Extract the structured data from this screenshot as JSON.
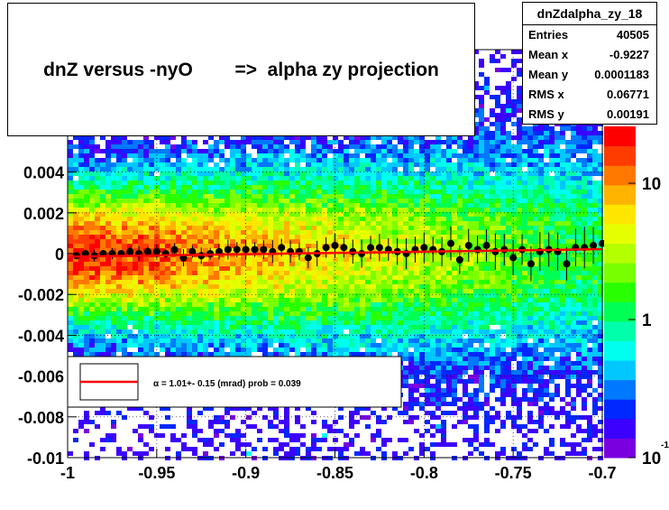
{
  "title": "dnZ versus -nyO        =>  alpha zy projection",
  "stats": {
    "name": "dnZdalpha_zy_18",
    "rows": [
      {
        "key": "Entries",
        "value": "40505"
      },
      {
        "key": "Mean x",
        "value": "-0.9227"
      },
      {
        "key": "Mean y",
        "value": "0.0001183"
      },
      {
        "key": "RMS x",
        "value": "0.06771"
      },
      {
        "key": "RMS y",
        "value": "0.00191"
      }
    ]
  },
  "chart_data": {
    "type": "heatmap",
    "xlim": [
      -1.0,
      -0.7
    ],
    "ylim": [
      -0.01,
      0.01
    ],
    "x_ticks": [
      "-1",
      "-0.95",
      "-0.9",
      "-0.85",
      "-0.8",
      "-0.75",
      "-0.7"
    ],
    "y_ticks": [
      "-0.01",
      "-0.008",
      "-0.006",
      "-0.004",
      "-0.002",
      "0",
      "0.002",
      "0.004"
    ],
    "grid": true,
    "colorbar": {
      "scale": "log",
      "labels": [
        "10",
        "1",
        "10"
      ],
      "exponent": "-1"
    },
    "palette": [
      "#7a00e0",
      "#3c00ff",
      "#0028ff",
      "#0078ff",
      "#00c8ff",
      "#00ffee",
      "#00ffaa",
      "#00ff55",
      "#28ff00",
      "#78ff00",
      "#b4ff00",
      "#e6ff00",
      "#ffe600",
      "#ffb400",
      "#ff7800",
      "#ff3c00",
      "#ff0000"
    ],
    "profile_points": [
      [
        -0.995,
        -0.0001
      ],
      [
        -0.99,
        0.0
      ],
      [
        -0.985,
        -0.0001
      ],
      [
        -0.98,
        0.0
      ],
      [
        -0.975,
        0.0
      ],
      [
        -0.97,
        0.0
      ],
      [
        -0.965,
        0.0001
      ],
      [
        -0.96,
        0.0
      ],
      [
        -0.955,
        0.0001
      ],
      [
        -0.95,
        0.0001
      ],
      [
        -0.945,
        0.0
      ],
      [
        -0.94,
        0.0002
      ],
      [
        -0.935,
        -0.0002
      ],
      [
        -0.93,
        0.0001
      ],
      [
        -0.925,
        -0.0001
      ],
      [
        -0.92,
        0.0
      ],
      [
        -0.915,
        0.0001
      ],
      [
        -0.91,
        0.0002
      ],
      [
        -0.905,
        0.0002
      ],
      [
        -0.9,
        0.0002
      ],
      [
        -0.895,
        0.0002
      ],
      [
        -0.89,
        0.0002
      ],
      [
        -0.885,
        0.0001
      ],
      [
        -0.88,
        0.0003
      ],
      [
        -0.875,
        0.0001
      ],
      [
        -0.87,
        0.0001
      ],
      [
        -0.865,
        -0.0002
      ],
      [
        -0.86,
        0.0
      ],
      [
        -0.855,
        0.0003
      ],
      [
        -0.85,
        0.0004
      ],
      [
        -0.845,
        0.0003
      ],
      [
        -0.84,
        0.0001
      ],
      [
        -0.835,
        0.0
      ],
      [
        -0.83,
        0.0003
      ],
      [
        -0.825,
        0.0003
      ],
      [
        -0.82,
        0.0002
      ],
      [
        -0.815,
        0.0001
      ],
      [
        -0.81,
        0.0
      ],
      [
        -0.805,
        0.0002
      ],
      [
        -0.8,
        0.0003
      ],
      [
        -0.795,
        0.0002
      ],
      [
        -0.79,
        0.0001
      ],
      [
        -0.785,
        0.0005
      ],
      [
        -0.78,
        -0.0003
      ],
      [
        -0.775,
        0.0004
      ],
      [
        -0.77,
        0.0002
      ],
      [
        -0.765,
        0.0004
      ],
      [
        -0.76,
        0.0001
      ],
      [
        -0.755,
        0.0002
      ],
      [
        -0.75,
        -0.0002
      ],
      [
        -0.745,
        0.0002
      ],
      [
        -0.74,
        -0.0005
      ],
      [
        -0.735,
        0.0001
      ],
      [
        -0.73,
        0.0002
      ],
      [
        -0.725,
        0.0001
      ],
      [
        -0.72,
        -0.0005
      ],
      [
        -0.715,
        0.0003
      ],
      [
        -0.71,
        0.0003
      ],
      [
        -0.705,
        0.0004
      ],
      [
        -0.7,
        0.0005
      ]
    ],
    "fit_line": {
      "x": [
        -1.0,
        -0.7
      ],
      "y": [
        -0.00015,
        0.00022
      ],
      "color": "#ff0000"
    },
    "fit_legend": "α =     1.01+- 0.15 (mrad) prob = 0.039"
  }
}
